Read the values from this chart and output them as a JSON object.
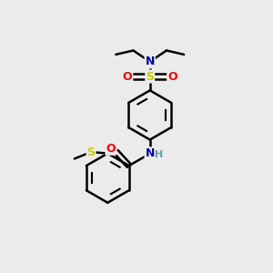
{
  "bg_color": "#ebebeb",
  "atom_colors": {
    "C": "#000000",
    "N": "#0000cc",
    "O": "#ff0000",
    "S": "#cccc00",
    "H": "#5f9ea0"
  },
  "bond_color": "#000000",
  "bond_width": 1.8,
  "figsize": [
    3.0,
    3.0
  ],
  "dpi": 100
}
